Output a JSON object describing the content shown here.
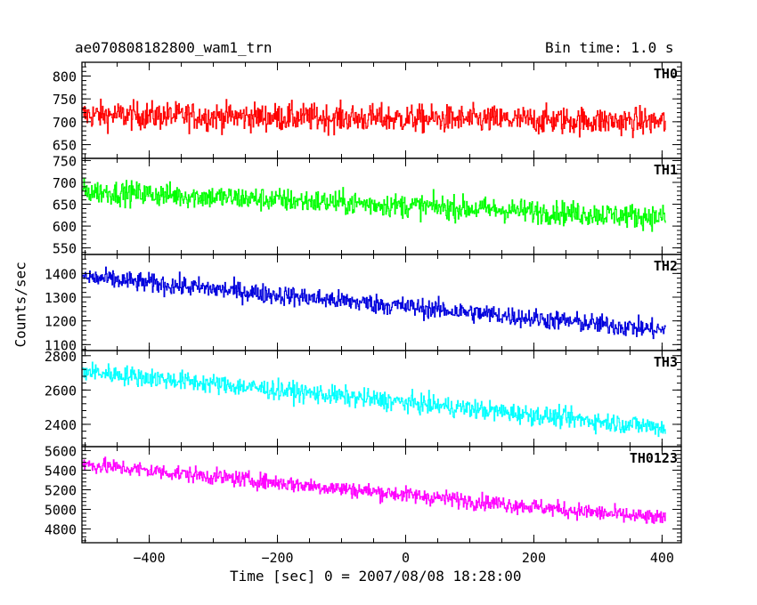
{
  "header": {
    "obs_id": "ae070808182800_wam1_trn",
    "bin_time": "Bin time: 1.0 s"
  },
  "chart_data": {
    "type": "line",
    "xlabel": "Time [sec] 0 = 2007/08/08 18:28:00",
    "ylabel": "Counts/sec",
    "x_range": [
      -505,
      405
    ],
    "xlim": [
      -505,
      430
    ],
    "x_ticks": [
      -400,
      -200,
      0,
      200,
      400
    ],
    "x_tick_labels": [
      "−400",
      "−200",
      "0",
      "200",
      "400"
    ],
    "panels": [
      {
        "name": "TH0",
        "color": "#ff0000",
        "ylim": [
          620,
          830
        ],
        "y_ticks": [
          650,
          700,
          750,
          800
        ],
        "trend_start": 715,
        "trend_end": 700,
        "noise": 28
      },
      {
        "name": "TH1",
        "color": "#00ff00",
        "ylim": [
          535,
          755
        ],
        "y_ticks": [
          550,
          600,
          650,
          700,
          750
        ],
        "trend_start": 680,
        "trend_end": 620,
        "noise": 25
      },
      {
        "name": "TH2",
        "color": "#0000dd",
        "ylim": [
          1075,
          1480
        ],
        "y_ticks": [
          1100,
          1200,
          1300,
          1400
        ],
        "trend_start": 1385,
        "trend_end": 1160,
        "noise": 38
      },
      {
        "name": "TH3",
        "color": "#00ffff",
        "ylim": [
          2270,
          2830
        ],
        "y_ticks": [
          2400,
          2600,
          2800
        ],
        "trend_start": 2710,
        "trend_end": 2380,
        "noise": 52
      },
      {
        "name": "TH0123",
        "color": "#ff00ff",
        "ylim": [
          4660,
          5640
        ],
        "y_ticks": [
          4800,
          5000,
          5200,
          5400,
          5600
        ],
        "trend_start": 5460,
        "trend_end": 4900,
        "noise": 75
      }
    ]
  }
}
